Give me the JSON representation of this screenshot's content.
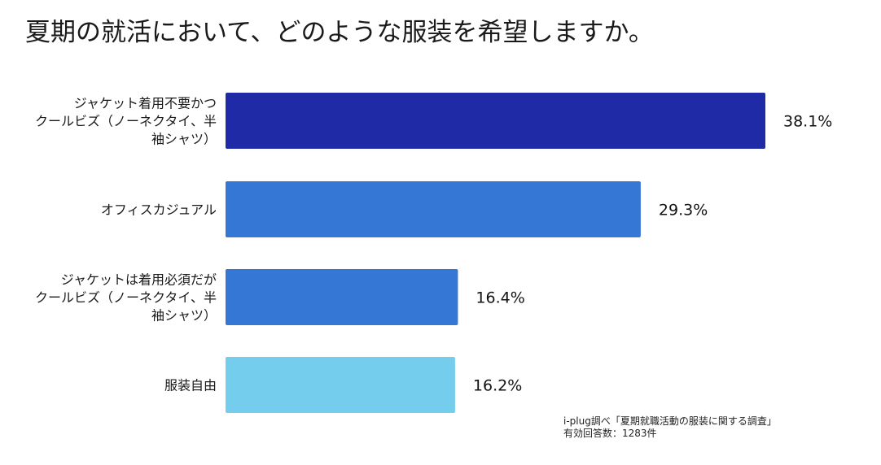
{
  "title": "夏期の就活において、どのような服装を希望しますか。",
  "chart_data": {
    "type": "bar",
    "orientation": "horizontal",
    "title": "夏期の就活において、どのような服装を希望しますか。",
    "categories": [
      [
        "ジャケット着用不要かつ",
        "クールビズ（ノーネクタイ、半",
        "袖シャツ）"
      ],
      [
        "オフィスカジュアル"
      ],
      [
        "ジャケットは着用必須だが",
        "クールビズ（ノーネクタイ、半",
        "袖シャツ）"
      ],
      [
        "服装自由"
      ]
    ],
    "values": [
      38.1,
      29.3,
      16.4,
      16.2
    ],
    "value_labels": [
      "38.1%",
      "29.3%",
      "16.4%",
      "16.2%"
    ],
    "colors": [
      "#1f2aa6",
      "#3577d4",
      "#3577d4",
      "#74cdec"
    ],
    "unit": "%",
    "xlim": [
      0,
      38.1
    ],
    "grid": false
  },
  "source": {
    "line1": "i-plug調べ「夏期就職活動の服装に関する調査」",
    "line2": "有効回答数：1283件"
  }
}
